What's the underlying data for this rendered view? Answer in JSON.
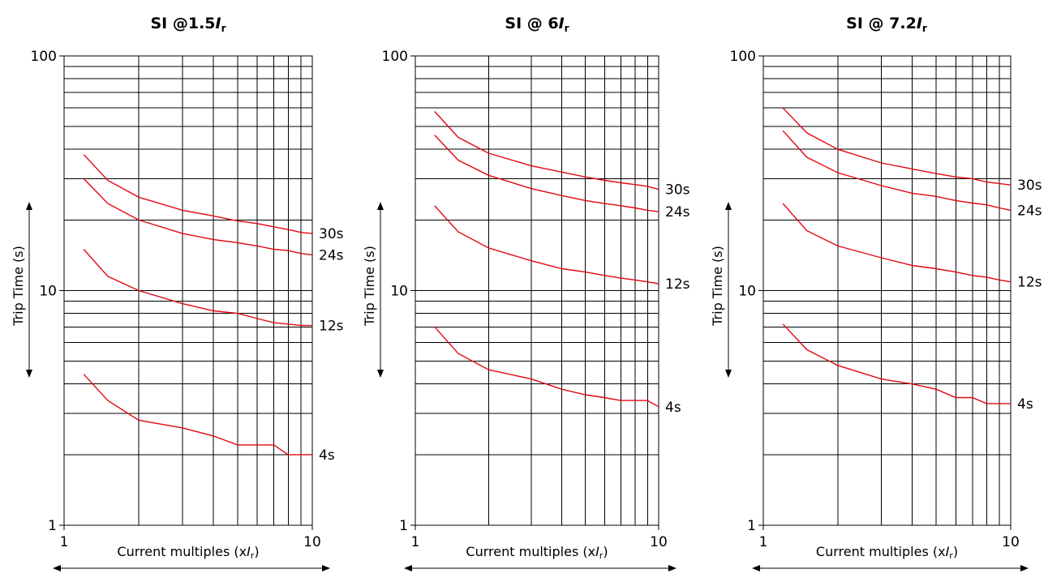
{
  "chart_data": [
    {
      "type": "line",
      "title": {
        "main": "SI @1.5",
        "var": "I",
        "sub": "r"
      },
      "xlabel": {
        "pre": "Current multiples (x",
        "var": "I",
        "sub": "r",
        "post": ")"
      },
      "ylabel": "Trip Time (s)",
      "xscale": "log",
      "yscale": "log",
      "xlim": [
        1,
        10
      ],
      "ylim": [
        1,
        100
      ],
      "x_tick_labels": [
        "1",
        "10"
      ],
      "y_tick_labels": [
        "1",
        "10",
        "100"
      ],
      "grid": true,
      "series": [
        {
          "name": "30s",
          "x": [
            1.2,
            1.5,
            2,
            3,
            4,
            5,
            6,
            7,
            8,
            9,
            10
          ],
          "y": [
            38,
            29.5,
            25,
            22,
            20.8,
            19.8,
            19.3,
            18.7,
            18.2,
            17.7,
            17.5
          ]
        },
        {
          "name": "24s",
          "x": [
            1.2,
            1.5,
            2,
            3,
            4,
            5,
            6,
            7,
            8,
            9,
            10
          ],
          "y": [
            30,
            23.5,
            20,
            17.5,
            16.5,
            16,
            15.5,
            15,
            14.8,
            14.4,
            14.2
          ]
        },
        {
          "name": "12s",
          "x": [
            1.2,
            1.5,
            2,
            3,
            4,
            5,
            6,
            7,
            8,
            9,
            10
          ],
          "y": [
            15,
            11.5,
            10,
            8.8,
            8.2,
            8,
            7.6,
            7.3,
            7.2,
            7.1,
            7.1
          ]
        },
        {
          "name": "4s",
          "x": [
            1.2,
            1.5,
            2,
            3,
            4,
            5,
            6,
            7,
            8,
            9,
            10
          ],
          "y": [
            4.4,
            3.4,
            2.8,
            2.6,
            2.4,
            2.2,
            2.2,
            2.2,
            2.0,
            2.0,
            2.0
          ]
        }
      ]
    },
    {
      "type": "line",
      "title": {
        "main": "SI @ 6",
        "var": "I",
        "sub": "r"
      },
      "xlabel": {
        "pre": "Current multiples (x",
        "var": "I",
        "sub": "r",
        "post": ")"
      },
      "ylabel": "Trip Time (s)",
      "xscale": "log",
      "yscale": "log",
      "xlim": [
        1,
        10
      ],
      "ylim": [
        1,
        100
      ],
      "x_tick_labels": [
        "1",
        "10"
      ],
      "y_tick_labels": [
        "1",
        "10",
        "100"
      ],
      "grid": true,
      "series": [
        {
          "name": "30s",
          "x": [
            1.2,
            1.5,
            2,
            3,
            4,
            5,
            6,
            7,
            8,
            9,
            10
          ],
          "y": [
            58,
            45,
            38.5,
            34,
            32,
            30.5,
            29.5,
            28.8,
            28.3,
            27.8,
            27
          ]
        },
        {
          "name": "24s",
          "x": [
            1.2,
            1.5,
            2,
            3,
            4,
            5,
            6,
            7,
            8,
            9,
            10
          ],
          "y": [
            46,
            36,
            31,
            27.2,
            25.4,
            24.2,
            23.5,
            23,
            22.5,
            22,
            21.7
          ]
        },
        {
          "name": "12s",
          "x": [
            1.2,
            1.5,
            2,
            3,
            4,
            5,
            6,
            7,
            8,
            9,
            10
          ],
          "y": [
            23,
            17.8,
            15.2,
            13.4,
            12.4,
            12,
            11.6,
            11.3,
            11.1,
            10.9,
            10.7
          ]
        },
        {
          "name": "4s",
          "x": [
            1.2,
            1.5,
            2,
            3,
            4,
            5,
            6,
            7,
            8,
            9,
            10
          ],
          "y": [
            7,
            5.4,
            4.6,
            4.2,
            3.8,
            3.6,
            3.5,
            3.4,
            3.4,
            3.4,
            3.2
          ]
        }
      ]
    },
    {
      "type": "line",
      "title": {
        "main": "SI @ 7.2",
        "var": "I",
        "sub": "r"
      },
      "xlabel": {
        "pre": "Current multiples (x",
        "var": "I",
        "sub": "r",
        "post": ")"
      },
      "ylabel": "Trip Time (s)",
      "xscale": "log",
      "yscale": "log",
      "xlim": [
        1,
        10
      ],
      "ylim": [
        1,
        100
      ],
      "x_tick_labels": [
        "1",
        "10"
      ],
      "y_tick_labels": [
        "1",
        "10",
        "100"
      ],
      "grid": true,
      "series": [
        {
          "name": "30s",
          "x": [
            1.2,
            1.5,
            2,
            3,
            4,
            5,
            6,
            7,
            8,
            9,
            10
          ],
          "y": [
            60,
            47,
            40,
            35,
            33,
            31.5,
            30.5,
            30,
            29,
            28.6,
            28.2
          ]
        },
        {
          "name": "24s",
          "x": [
            1.2,
            1.5,
            2,
            3,
            4,
            5,
            6,
            7,
            8,
            9,
            10
          ],
          "y": [
            48,
            37,
            31.8,
            28,
            26,
            25.2,
            24.2,
            23.6,
            23.2,
            22.5,
            22
          ]
        },
        {
          "name": "12s",
          "x": [
            1.2,
            1.5,
            2,
            3,
            4,
            5,
            6,
            7,
            8,
            9,
            10
          ],
          "y": [
            23.5,
            18,
            15.5,
            13.8,
            12.8,
            12.4,
            12,
            11.6,
            11.4,
            11.1,
            10.9
          ]
        },
        {
          "name": "4s",
          "x": [
            1.2,
            1.5,
            2,
            3,
            4,
            5,
            6,
            7,
            8,
            9,
            10
          ],
          "y": [
            7.2,
            5.6,
            4.8,
            4.2,
            4.0,
            3.8,
            3.5,
            3.5,
            3.3,
            3.3,
            3.3
          ]
        }
      ]
    }
  ],
  "colors": {
    "curve": "#e30613",
    "grid": "#000000"
  }
}
